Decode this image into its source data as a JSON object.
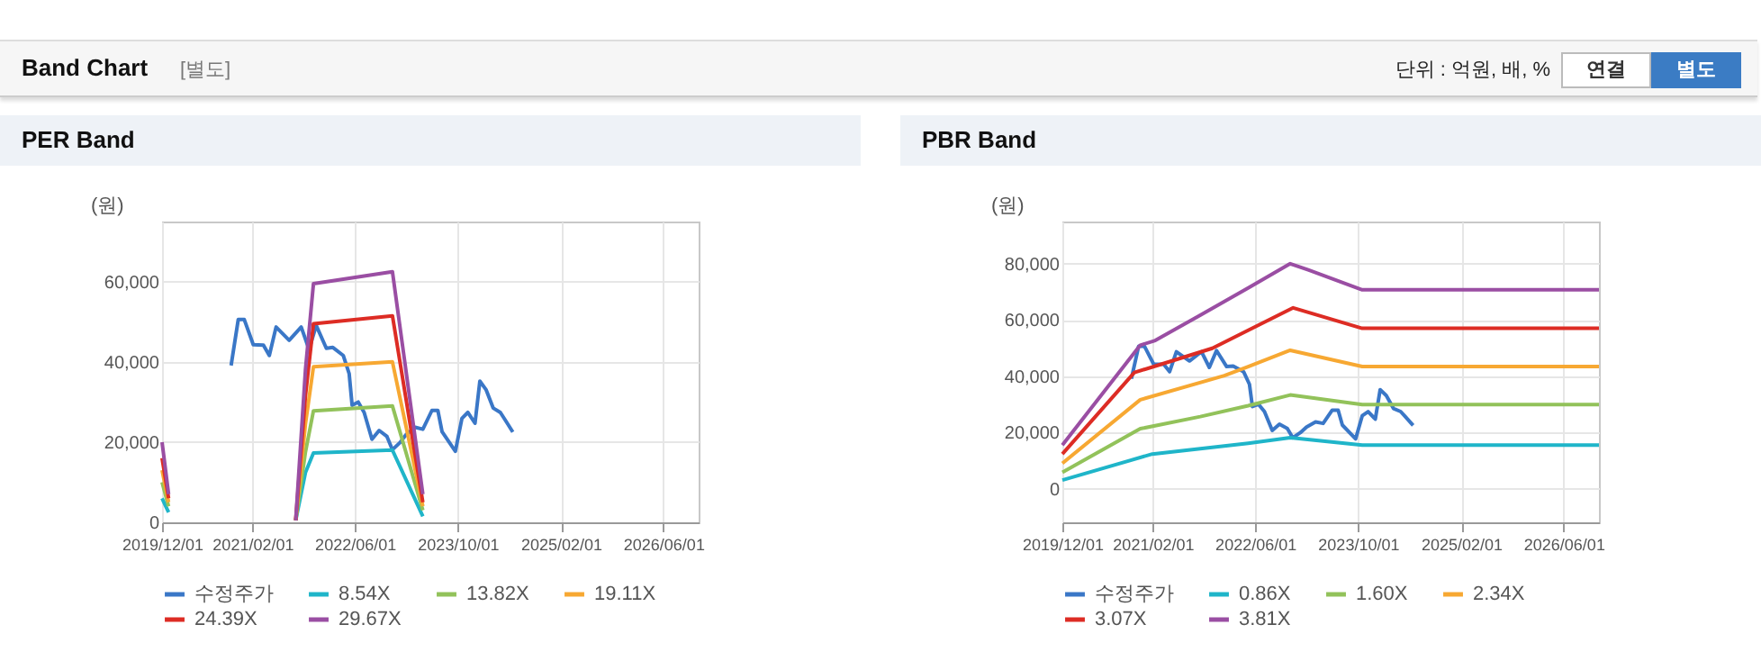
{
  "chart_data": [
    {
      "type": "other",
      "title": "Band Chart",
      "annotations": [
        "[별도]",
        "단위 : 억원, 배, %",
        "연결",
        "별도"
      ]
    },
    {
      "type": "line",
      "title": "PER Band",
      "ylabel": "(원)",
      "legend": "bottom",
      "grid": true,
      "x": [
        "2019-12-01",
        "2020-01-01",
        "2020-06-01",
        "2021-08-25",
        "2021-10-10",
        "2021-11-17",
        "2022-11-26",
        "2023-04-19"
      ],
      "xlim": [
        "2019-12-01",
        "2026-11-15"
      ],
      "xticks": [
        {
          "value": "2019-12-01",
          "label": "2019/12/01"
        },
        {
          "value": "2021-02-01",
          "label": "2021/02/01"
        },
        {
          "value": "2022-06-01",
          "label": "2022/06/01"
        },
        {
          "value": "2023-10-01",
          "label": "2023/10/01"
        },
        {
          "value": "2025-02-01",
          "label": "2025/02/01"
        },
        {
          "value": "2026-06-01",
          "label": "2026/06/01"
        }
      ],
      "ylim": [
        0,
        75000
      ],
      "yticks": [
        {
          "value": 0,
          "label": "0"
        },
        {
          "value": 20000,
          "label": "20,000"
        },
        {
          "value": 40000,
          "label": "40,000"
        },
        {
          "value": 60000,
          "label": "60,000"
        }
      ],
      "series": [
        {
          "name": "수정주가",
          "color": "#3a77c7",
          "x": [
            "2020-10-23",
            "2020-11-26",
            "2020-12-24",
            "2021-02-05",
            "2021-03-25",
            "2021-04-22",
            "2021-05-24",
            "2021-07-25",
            "2021-09-20",
            "2021-10-27",
            "2021-11-30",
            "2022-01-17",
            "2022-02-17",
            "2022-04-07",
            "2022-05-05",
            "2022-05-19",
            "2022-06-17",
            "2022-07-15",
            "2022-08-21",
            "2022-09-24",
            "2022-10-31",
            "2022-11-26",
            "2023-01-01",
            "2023-01-30",
            "2023-03-14",
            "2023-04-19",
            "2023-06-01",
            "2023-06-29",
            "2023-07-19",
            "2023-09-20",
            "2023-10-21",
            "2023-11-18",
            "2023-12-22",
            "2024-01-14",
            "2024-02-12",
            "2024-03-17",
            "2024-04-20",
            "2024-05-12",
            "2024-06-18"
          ],
          "values": [
            39100,
            50600,
            50600,
            44300,
            44200,
            41600,
            48700,
            45400,
            48700,
            43100,
            49100,
            43400,
            43600,
            41600,
            37100,
            29200,
            30000,
            27400,
            20700,
            22900,
            21400,
            18100,
            19900,
            21900,
            23700,
            23200,
            27900,
            27900,
            22600,
            17700,
            25900,
            27400,
            24700,
            35200,
            33100,
            28500,
            27400,
            25600,
            22500
          ]
        },
        {
          "name": "8.54X",
          "color": "#1fb5c9",
          "values": [
            6000,
            2500,
            null,
            500,
            12400,
            17300,
            18000,
            1500
          ]
        },
        {
          "name": "13.82X",
          "color": "#92c25a",
          "values": [
            10000,
            4000,
            null,
            500,
            17500,
            27800,
            29000,
            3000
          ]
        },
        {
          "name": "19.11X",
          "color": "#f7a832",
          "values": [
            13000,
            5000,
            null,
            500,
            24500,
            38800,
            40000,
            4000
          ]
        },
        {
          "name": "24.39X",
          "color": "#dd2c24",
          "values": [
            16000,
            6000,
            null,
            500,
            31500,
            49500,
            51500,
            5000
          ]
        },
        {
          "name": "29.67X",
          "color": "#9a4ea3",
          "values": [
            20000,
            7000,
            null,
            500,
            38000,
            59500,
            62500,
            7000
          ]
        }
      ]
    },
    {
      "type": "line",
      "title": "PBR Band",
      "ylabel": "(원)",
      "legend": "bottom",
      "grid": true,
      "xlim": [
        "2019-12-01",
        "2026-11-15"
      ],
      "xticks": [
        {
          "value": "2019-12-01",
          "label": "2019/12/01"
        },
        {
          "value": "2021-02-01",
          "label": "2021/02/01"
        },
        {
          "value": "2022-06-01",
          "label": "2022/06/01"
        },
        {
          "value": "2023-10-01",
          "label": "2023/10/01"
        },
        {
          "value": "2025-02-01",
          "label": "2025/02/01"
        },
        {
          "value": "2026-06-01",
          "label": "2026/06/01"
        }
      ],
      "ylim": [
        -12000,
        95000
      ],
      "yticks": [
        {
          "value": 0,
          "label": "0"
        },
        {
          "value": 20000,
          "label": "20,000"
        },
        {
          "value": 40000,
          "label": "40,000"
        },
        {
          "value": 60000,
          "label": "60,000"
        },
        {
          "value": 80000,
          "label": "80,000"
        }
      ],
      "series": [
        {
          "name": "수정주가",
          "color": "#3a77c7",
          "x": [
            "2020-10-23",
            "2020-11-26",
            "2020-12-24",
            "2021-02-05",
            "2021-03-25",
            "2021-04-22",
            "2021-05-24",
            "2021-07-25",
            "2021-09-20",
            "2021-10-27",
            "2021-11-30",
            "2022-01-17",
            "2022-02-17",
            "2022-04-07",
            "2022-05-05",
            "2022-05-19",
            "2022-06-17",
            "2022-07-15",
            "2022-08-21",
            "2022-09-24",
            "2022-10-31",
            "2022-11-26",
            "2023-01-01",
            "2023-01-30",
            "2023-03-14",
            "2023-04-19",
            "2023-06-01",
            "2023-06-29",
            "2023-07-19",
            "2023-09-20",
            "2023-10-21",
            "2023-11-18",
            "2023-12-22",
            "2024-01-14",
            "2024-02-12",
            "2024-03-17",
            "2024-04-20",
            "2024-05-12",
            "2024-06-18"
          ],
          "values": [
            39100,
            50600,
            50600,
            44300,
            44200,
            41600,
            48700,
            45400,
            48700,
            43100,
            49100,
            43400,
            43600,
            41600,
            37100,
            29200,
            30000,
            27400,
            20700,
            22900,
            21400,
            18100,
            19900,
            21900,
            23700,
            23200,
            27900,
            27900,
            22600,
            17700,
            25900,
            27400,
            24700,
            35200,
            33100,
            28500,
            27400,
            25600,
            22500
          ]
        },
        {
          "name": "0.86X",
          "color": "#1fb5c9",
          "x": [
            "2019-12-01",
            "2021-01-30",
            "2022-04-29",
            "2022-11-14",
            "2023-10-21",
            "2026-11-15"
          ],
          "values": [
            3000,
            12300,
            16100,
            18100,
            15500,
            15500
          ]
        },
        {
          "name": "1.60X",
          "color": "#92c25a",
          "x": [
            "2019-12-01",
            "2020-12-04",
            "2021-09-14",
            "2022-04-29",
            "2022-11-14",
            "2023-10-21",
            "2026-11-15"
          ],
          "values": [
            5800,
            21300,
            25600,
            29500,
            33300,
            29900,
            29900
          ]
        },
        {
          "name": "2.34X",
          "color": "#f7a832",
          "x": [
            "2019-12-01",
            "2020-12-04",
            "2022-01-06",
            "2022-04-29",
            "2022-11-14",
            "2023-10-21",
            "2026-11-15"
          ],
          "values": [
            9000,
            31600,
            40200,
            43400,
            49200,
            43400,
            43400
          ]
        },
        {
          "name": "3.07X",
          "color": "#dd2c24",
          "x": [
            "2019-12-01",
            "2020-11-06",
            "2021-02-27",
            "2021-11-10",
            "2022-04-29",
            "2022-11-28",
            "2023-10-21",
            "2026-11-15"
          ],
          "values": [
            12300,
            41300,
            43900,
            49900,
            56300,
            64300,
            57000,
            57000
          ]
        },
        {
          "name": "3.81X",
          "color": "#9a4ea3",
          "x": [
            "2019-12-01",
            "2020-12-04",
            "2021-02-13",
            "2021-09-14",
            "2022-04-29",
            "2022-11-14",
            "2023-02-07",
            "2023-10-21",
            "2026-11-15"
          ],
          "values": [
            15500,
            51000,
            52700,
            61700,
            71400,
            80000,
            77800,
            70700,
            70700
          ]
        }
      ]
    }
  ]
}
